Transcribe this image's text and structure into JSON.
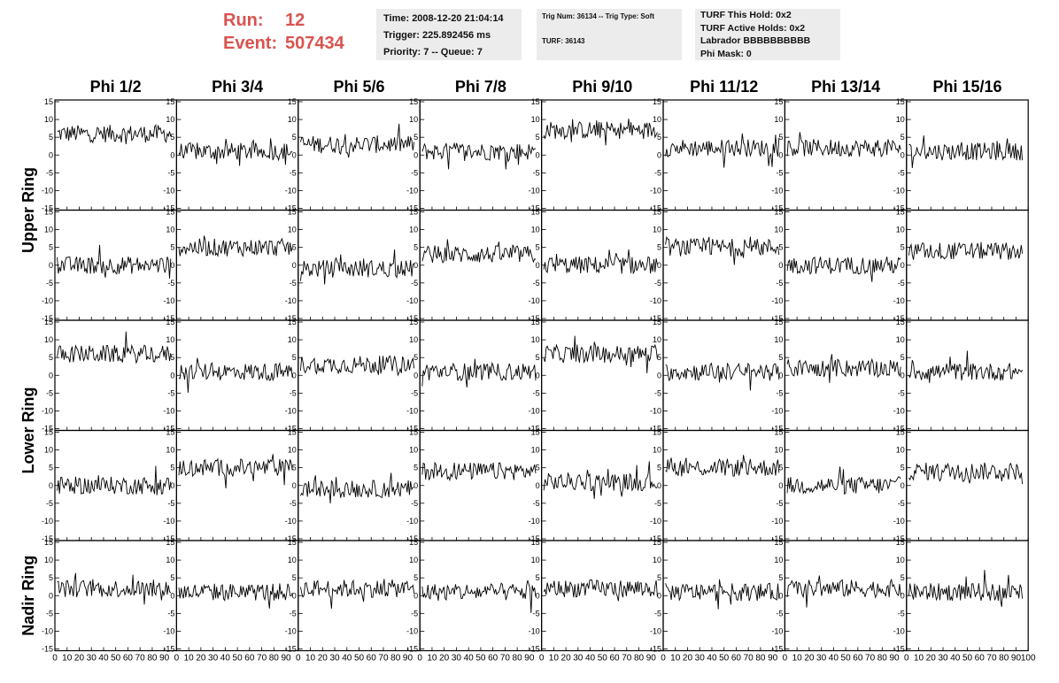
{
  "header": {
    "run_label": "Run:",
    "run_value": "12",
    "event_label": "Event:",
    "event_value": "507434",
    "time_line": "Time: 2008-12-20 21:04:14",
    "trigger_line": "Trigger: 225.892456 ms",
    "priority_line": "Priority: 7 -- Queue: 7",
    "trig_num_line": "Trig Num: 36134 -- Trig Type: Soft",
    "turf_line": "TURF: 36143",
    "turf_hold_line": "TURF This Hold: 0x2",
    "turf_active_line": "TURF Active Holds: 0x2",
    "labrador_line": "Labrador BBBBBBBBBB",
    "phi_mask_line": "Phi Mask: 0"
  },
  "colors": {
    "header_text": "#d9534f",
    "info_bg": "#ececec",
    "trace": "#000000"
  },
  "chart_data": {
    "type": "line",
    "columns": [
      "Phi 1/2",
      "Phi 3/4",
      "Phi 5/6",
      "Phi 7/8",
      "Phi 9/10",
      "Phi 11/12",
      "Phi 13/14",
      "Phi 15/16"
    ],
    "ring_labels": [
      {
        "label": "Upper Ring",
        "rows": [
          0,
          1
        ]
      },
      {
        "label": "Lower Ring",
        "rows": [
          2,
          3
        ]
      },
      {
        "label": "Nadir Ring",
        "rows": [
          4
        ]
      }
    ],
    "xlim": [
      0,
      100
    ],
    "ylim": [
      -15,
      15
    ],
    "x_ticks": [
      0,
      10,
      20,
      30,
      40,
      50,
      60,
      70,
      80,
      90,
      100
    ],
    "y_ticks": [
      -15,
      -10,
      -5,
      0,
      5,
      10,
      15
    ],
    "samples_per_trace": 100,
    "trace_mean_levels": [
      [
        6,
        1,
        3,
        1,
        7,
        2,
        2,
        1
      ],
      [
        0,
        5,
        -1,
        3,
        0,
        5,
        0,
        4
      ],
      [
        6,
        1,
        3,
        1,
        6,
        1,
        2,
        1
      ],
      [
        0,
        5,
        -1,
        4,
        1,
        5,
        0,
        4
      ],
      [
        2,
        1,
        2,
        1,
        2,
        1,
        2,
        1
      ]
    ],
    "trace_noise_amplitude": 2.5
  }
}
